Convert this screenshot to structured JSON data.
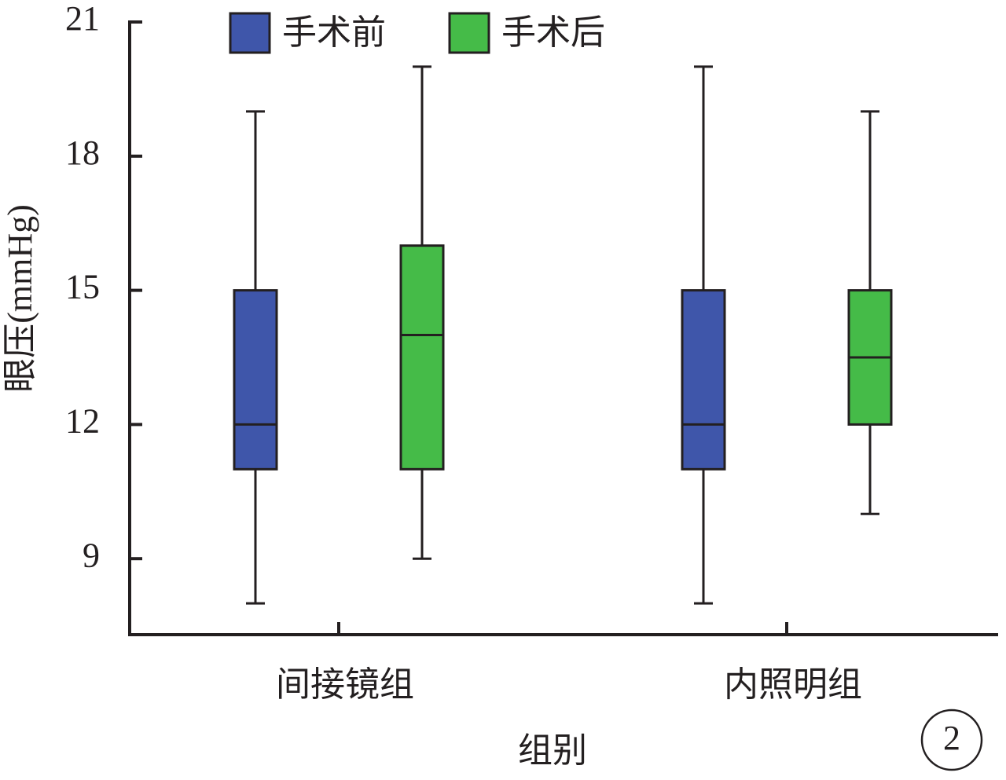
{
  "chart_data": {
    "type": "box",
    "y_label": "眼压(mmHg)",
    "x_label": "组别",
    "annotation": "2",
    "categories": [
      "间接镜组",
      "内照明组"
    ],
    "series": [
      {
        "name": "手术前",
        "color": "#3f56aa",
        "min": [
          8,
          8
        ],
        "q1": [
          11,
          11
        ],
        "median": [
          12,
          12
        ],
        "q3": [
          15,
          15
        ],
        "max": [
          19,
          20
        ]
      },
      {
        "name": "手术后",
        "color": "#45bb48",
        "min": [
          9,
          10
        ],
        "q1": [
          11,
          12
        ],
        "median": [
          14,
          13.5
        ],
        "q3": [
          16,
          15
        ],
        "max": [
          20,
          19
        ]
      }
    ],
    "ylim": [
      7.3,
      21
    ],
    "yticks": [
      9,
      12,
      15,
      18,
      21
    ]
  }
}
